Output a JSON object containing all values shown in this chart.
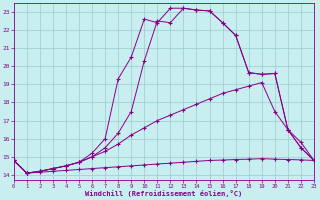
{
  "bg_color": "#c8eef0",
  "line_color": "#880088",
  "grid_color": "#99cccc",
  "xlabel": "Windchill (Refroidissement éolien,°C)",
  "xlim": [
    0,
    23
  ],
  "ylim": [
    13.7,
    23.5
  ],
  "xticks": [
    0,
    1,
    2,
    3,
    4,
    5,
    6,
    7,
    8,
    9,
    10,
    11,
    12,
    13,
    14,
    15,
    16,
    17,
    18,
    19,
    20,
    21,
    22,
    23
  ],
  "yticks": [
    14,
    15,
    16,
    17,
    18,
    19,
    20,
    21,
    22,
    23
  ],
  "lines": [
    {
      "x": [
        0,
        1,
        2,
        3,
        4,
        5,
        6,
        7,
        8,
        9,
        10,
        11,
        12,
        13,
        14,
        15,
        16,
        17,
        18,
        19,
        20,
        21,
        22,
        23
      ],
      "y": [
        14.8,
        14.1,
        14.15,
        14.2,
        14.25,
        14.3,
        14.35,
        14.4,
        14.45,
        14.5,
        14.55,
        14.6,
        14.65,
        14.7,
        14.75,
        14.8,
        14.82,
        14.85,
        14.87,
        14.9,
        14.87,
        14.85,
        14.83,
        14.8
      ]
    },
    {
      "x": [
        0,
        1,
        2,
        3,
        4,
        5,
        6,
        7,
        8,
        9,
        10,
        11,
        12,
        13,
        14,
        15,
        16,
        17,
        18,
        19,
        20,
        21,
        22,
        23
      ],
      "y": [
        14.8,
        14.1,
        14.2,
        14.35,
        14.5,
        14.7,
        15.0,
        15.3,
        15.7,
        16.2,
        16.6,
        17.0,
        17.3,
        17.6,
        17.9,
        18.2,
        18.5,
        18.7,
        18.9,
        19.1,
        17.5,
        16.5,
        15.8,
        14.8
      ]
    },
    {
      "x": [
        0,
        1,
        2,
        3,
        4,
        5,
        6,
        7,
        8,
        9,
        10,
        11,
        12,
        13,
        14,
        15,
        16,
        17,
        18,
        19,
        20,
        21,
        22,
        23
      ],
      "y": [
        14.8,
        14.1,
        14.2,
        14.35,
        14.5,
        14.7,
        15.2,
        16.0,
        19.3,
        20.5,
        22.6,
        22.4,
        23.2,
        23.2,
        23.1,
        23.05,
        22.4,
        21.7,
        19.65,
        19.55,
        19.6,
        16.5,
        15.5,
        14.8
      ]
    },
    {
      "x": [
        0,
        1,
        2,
        3,
        4,
        5,
        6,
        7,
        8,
        9,
        10,
        11,
        12,
        13,
        14,
        15,
        16,
        17,
        18,
        19,
        20,
        21,
        22,
        23
      ],
      "y": [
        14.8,
        14.1,
        14.2,
        14.35,
        14.5,
        14.7,
        15.0,
        15.5,
        16.3,
        17.5,
        20.3,
        22.5,
        22.4,
        23.2,
        23.1,
        23.05,
        22.4,
        21.7,
        19.65,
        19.55,
        19.6,
        16.5,
        15.5,
        14.8
      ]
    }
  ]
}
